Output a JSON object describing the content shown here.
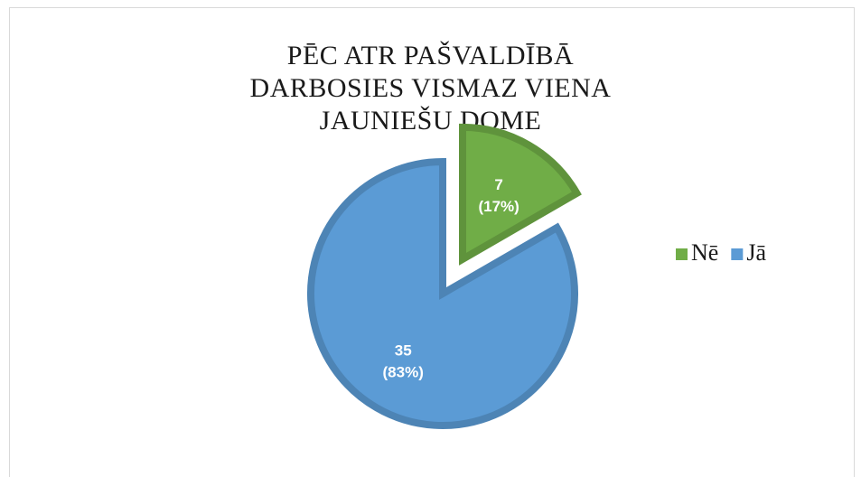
{
  "chart_data": {
    "type": "pie",
    "title": "PĒC ATR PAŠVALDĪBĀ DARBOSIES VISMAZ VIENA JAUNIEŠU DOME",
    "categories": [
      "Nē",
      "Jā"
    ],
    "values": [
      7,
      35
    ],
    "value_labels": [
      [
        "7",
        "(17%)"
      ],
      [
        "35",
        "(83%)"
      ]
    ],
    "colors": [
      "#70ad47",
      "#5b9bd5"
    ],
    "legend": "right"
  }
}
